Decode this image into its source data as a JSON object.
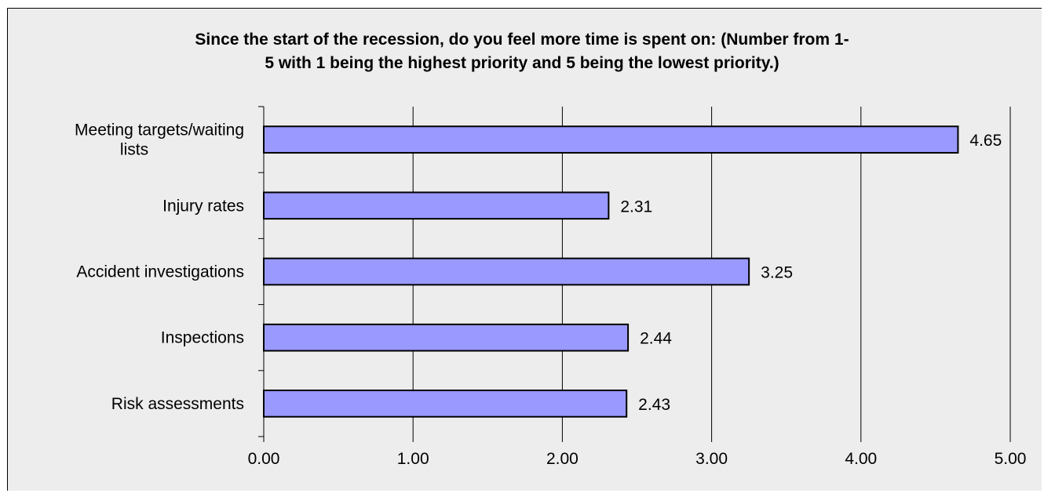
{
  "chart_data": {
    "type": "bar",
    "orientation": "horizontal",
    "title": "Since the start of the recession, do you feel more time is spent on: (Number from 1-\n5 with 1 being the highest priority and 5 being the lowest priority.)",
    "categories": [
      [
        "Meeting targets/waiting",
        "lists"
      ],
      [
        "Injury rates"
      ],
      [
        "Accident investigations"
      ],
      [
        "Inspections"
      ],
      [
        "Risk assessments"
      ]
    ],
    "values": [
      4.65,
      2.31,
      3.25,
      2.44,
      2.43
    ],
    "data_labels": [
      "4.65",
      "2.31",
      "3.25",
      "2.44",
      "2.43"
    ],
    "xlim": [
      0,
      5
    ],
    "xticks": [
      0,
      1,
      2,
      3,
      4,
      5
    ],
    "xtick_labels": [
      "0.00",
      "1.00",
      "2.00",
      "3.00",
      "4.00",
      "5.00"
    ],
    "xlabel": "",
    "ylabel": "",
    "grid": "vertical",
    "legend": "none",
    "bar_color": "#9999ff",
    "bar_edge_color": "#000000",
    "background_color": "#ededed"
  }
}
